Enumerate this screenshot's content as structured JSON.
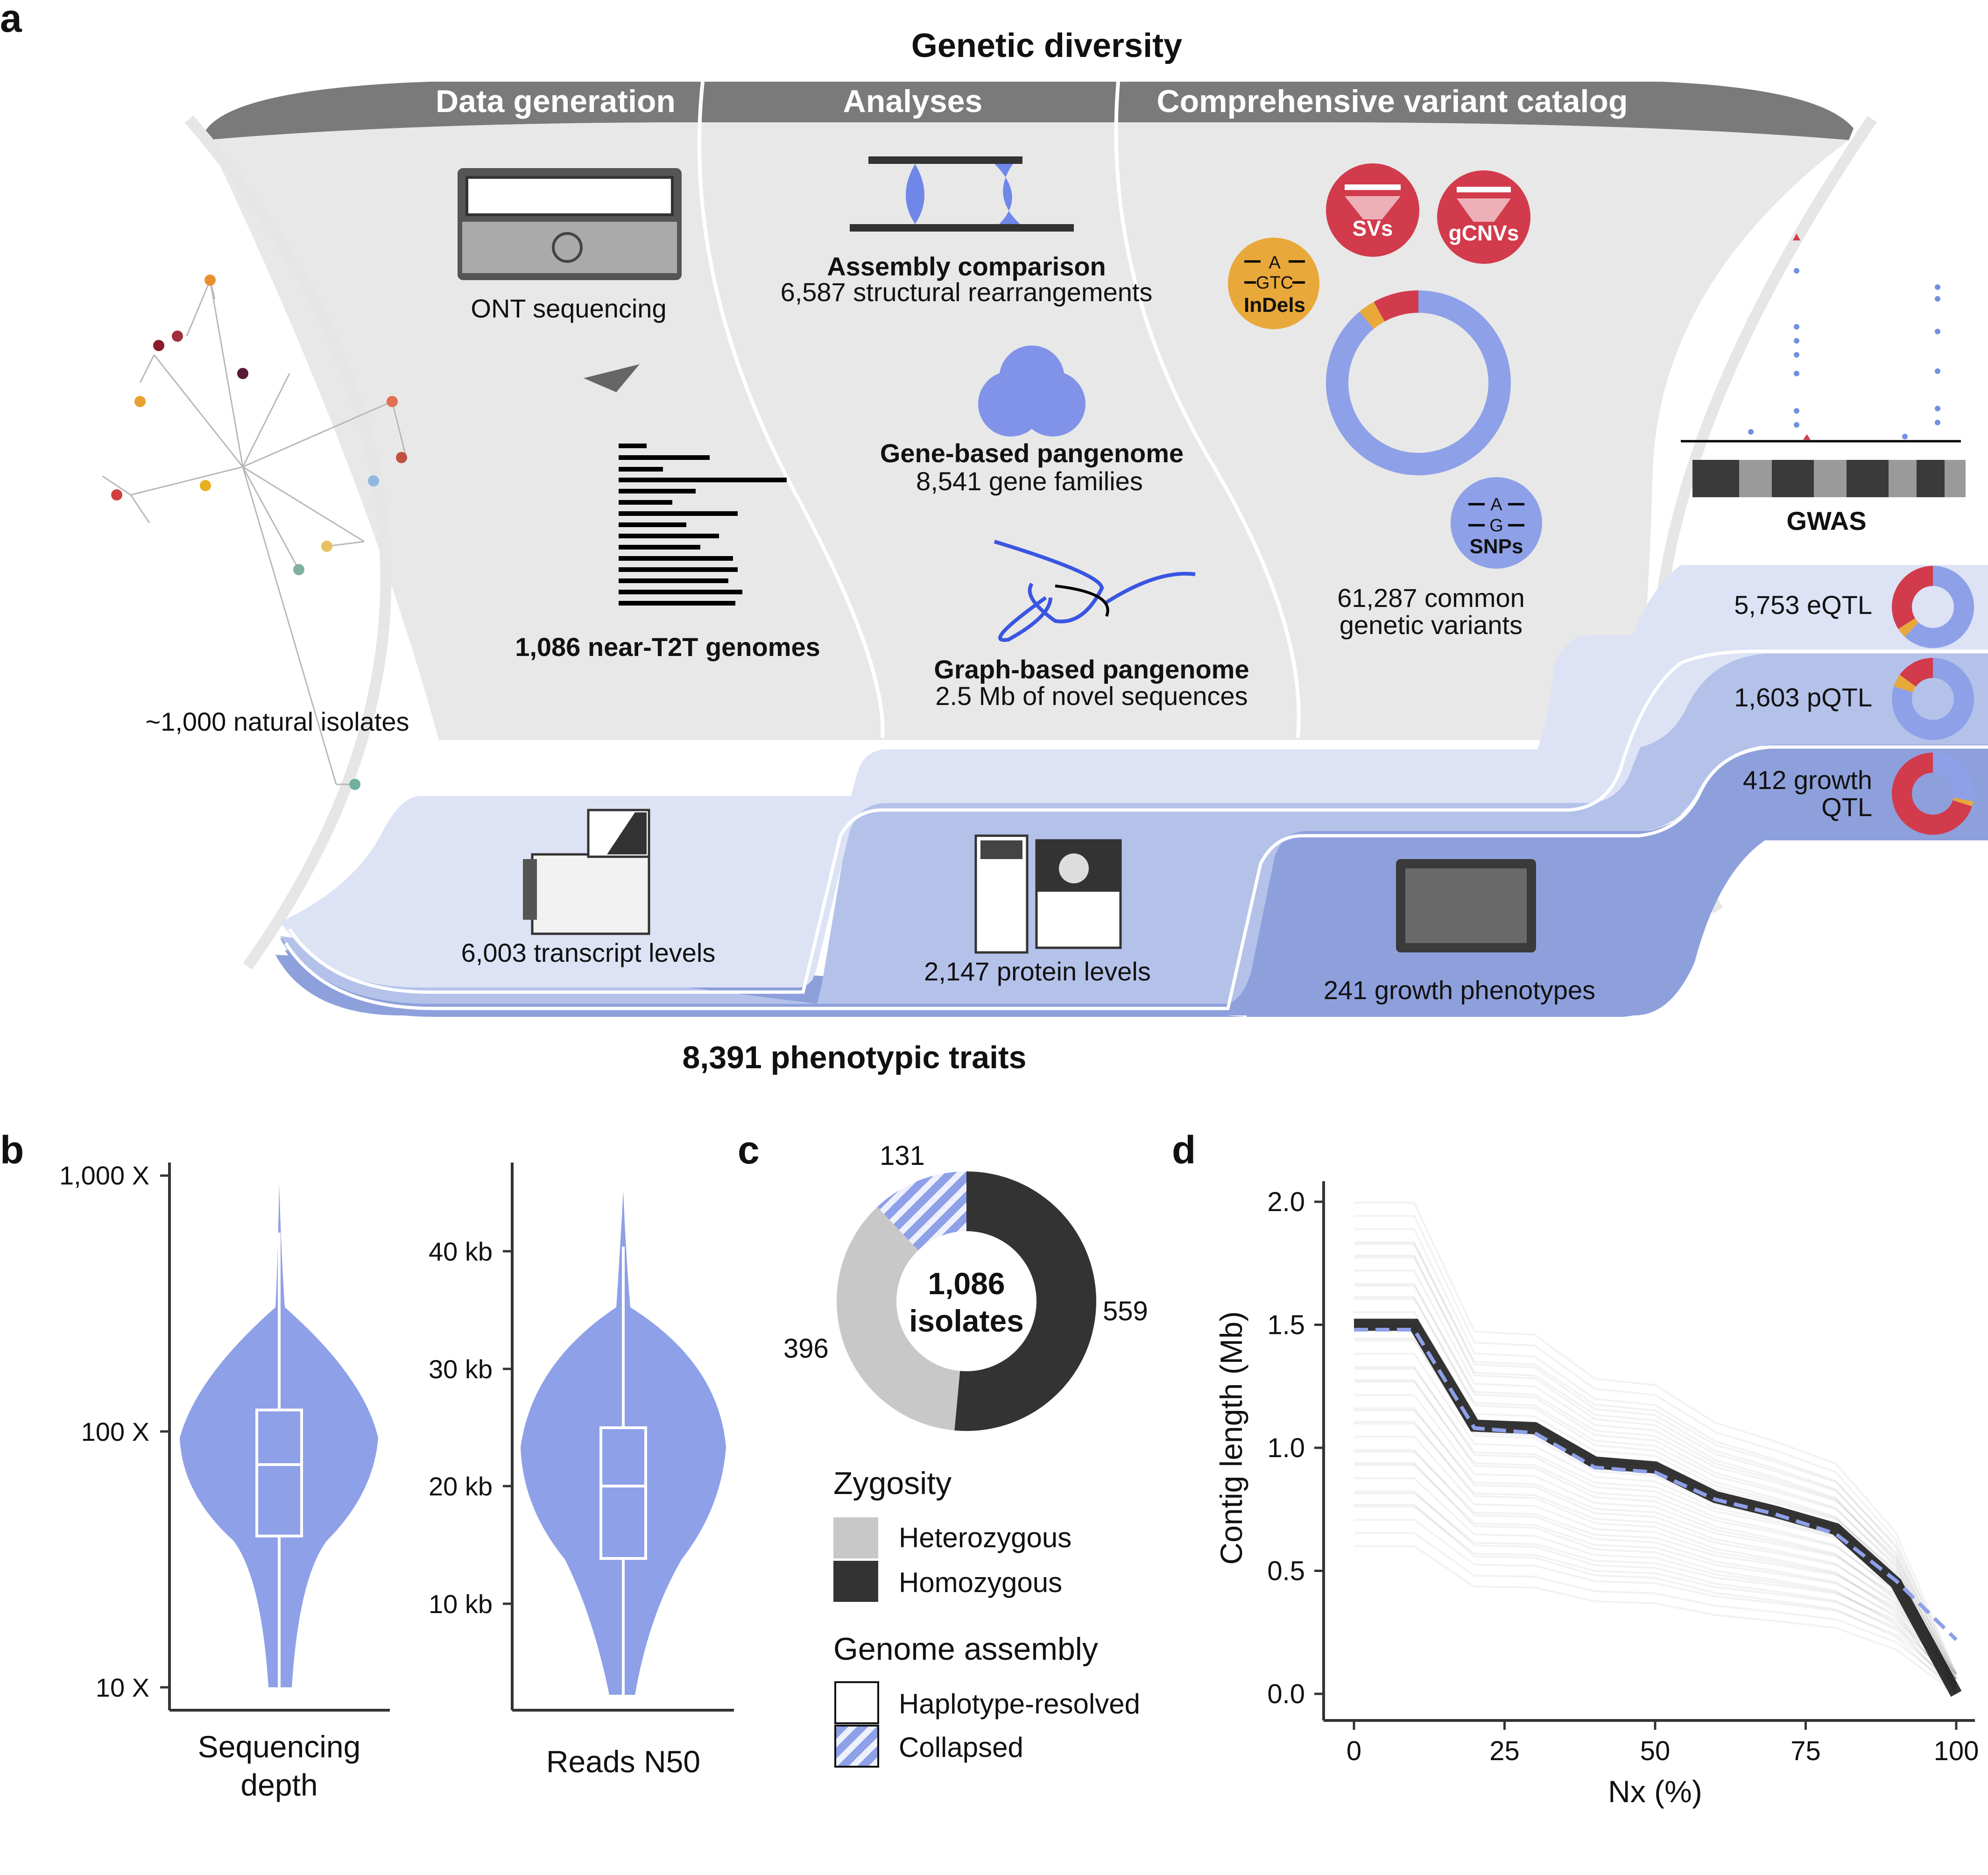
{
  "panel_labels": {
    "a": "a",
    "b": "b",
    "c": "c",
    "d": "d"
  },
  "panel_a": {
    "title": "Genetic diversity",
    "header_tabs": [
      "Data generation",
      "Analyses",
      "Comprehensive variant catalog"
    ],
    "tree_label": "~1,000 natural isolates",
    "ont_label": "ONT sequencing",
    "genomes_label": "1,086 near-T2T genomes",
    "assembly_title": "Assembly comparison",
    "assembly_sub": "6,587 structural rearrangements",
    "gene_pan_title": "Gene-based pangenome",
    "gene_pan_sub": "8,541 gene families",
    "graph_pan_title": "Graph-based pangenome",
    "graph_pan_sub": "2.5 Mb of novel sequences",
    "variant_badges": {
      "svs": "SVs",
      "gcnvs": "gCNVs",
      "indels": "InDels",
      "snps": "SNPs",
      "a1": "A",
      "gtc": "GTC",
      "a2": "A",
      "g": "G"
    },
    "variants_label_1": "61,287 common",
    "variants_label_2": "genetic variants",
    "variant_donut_fractions": {
      "snps": 0.89,
      "indels": 0.03,
      "svs_gcnvs": 0.08
    },
    "gwas_label": "GWAS",
    "qtl": [
      {
        "label": "5,753 eQTL",
        "fractions": [
          0.62,
          0.04,
          0.34
        ]
      },
      {
        "label": "1,603 pQTL",
        "fractions": [
          0.8,
          0.05,
          0.15
        ]
      },
      {
        "label_1": "412 growth",
        "label_2": "QTL",
        "fractions": [
          0.28,
          0.02,
          0.7
        ]
      }
    ],
    "phenotypes": [
      "6,003 transcript levels",
      "2,147 protein levels",
      "241 growth phenotypes"
    ],
    "bottom_title": "8,391 phenotypic traits"
  },
  "panel_b": {
    "left": {
      "xlabel_1": "Sequencing",
      "xlabel_2": "depth",
      "ticks": [
        "1,000 X",
        "100 X",
        "10 X"
      ],
      "tick_values": [
        1000,
        100,
        10
      ],
      "scale": "log",
      "box": {
        "q1": 40,
        "median": 75,
        "q3": 120
      }
    },
    "right": {
      "xlabel": "Reads N50",
      "ticks": [
        "40 kb",
        "30 kb",
        "20 kb",
        "10 kb"
      ],
      "tick_values": [
        40,
        30,
        20,
        10
      ],
      "box": {
        "q1": 14,
        "median": 20,
        "q3": 25
      }
    }
  },
  "panel_c": {
    "center_1": "1,086",
    "center_2": "isolates",
    "slices": [
      {
        "name": "Homozygous",
        "value": 559,
        "label": "559",
        "color": "#333333"
      },
      {
        "name": "Heterozygous",
        "value": 396,
        "label": "396",
        "color": "#c8c8c8"
      },
      {
        "name": "Collapsed",
        "value": 131,
        "label": "131",
        "color": "#8ea0e8"
      }
    ],
    "legend1_title": "Zygosity",
    "legend1_items": [
      "Heterozygous",
      "Homozygous"
    ],
    "legend2_title": "Genome assembly",
    "legend2_items": [
      "Haplotype-resolved",
      "Collapsed"
    ]
  },
  "chart_data": {
    "type": "line",
    "xlabel": "Nx (%)",
    "ylabel": "Contig length (Mb)",
    "xlim": [
      0,
      100
    ],
    "ylim": [
      0,
      2.1
    ],
    "xticks": [
      "0",
      "25",
      "50",
      "75",
      "100"
    ],
    "yticks": [
      "0.0",
      "0.5",
      "1.0",
      "1.5",
      "2.0"
    ],
    "series": [
      {
        "x": [
          0,
          10,
          20,
          30,
          40,
          50,
          60,
          70,
          80,
          90,
          100
        ],
        "y": [
          1.5,
          1.5,
          1.09,
          1.08,
          0.94,
          0.92,
          0.8,
          0.74,
          0.67,
          0.45,
          0.0
        ]
      },
      {
        "x": [
          0,
          10,
          20,
          30,
          40,
          50,
          60,
          70,
          80,
          90,
          100
        ],
        "y": [
          1.48,
          1.48,
          1.08,
          1.06,
          0.92,
          0.9,
          0.79,
          0.73,
          0.65,
          0.46,
          0.22
        ]
      }
    ]
  }
}
